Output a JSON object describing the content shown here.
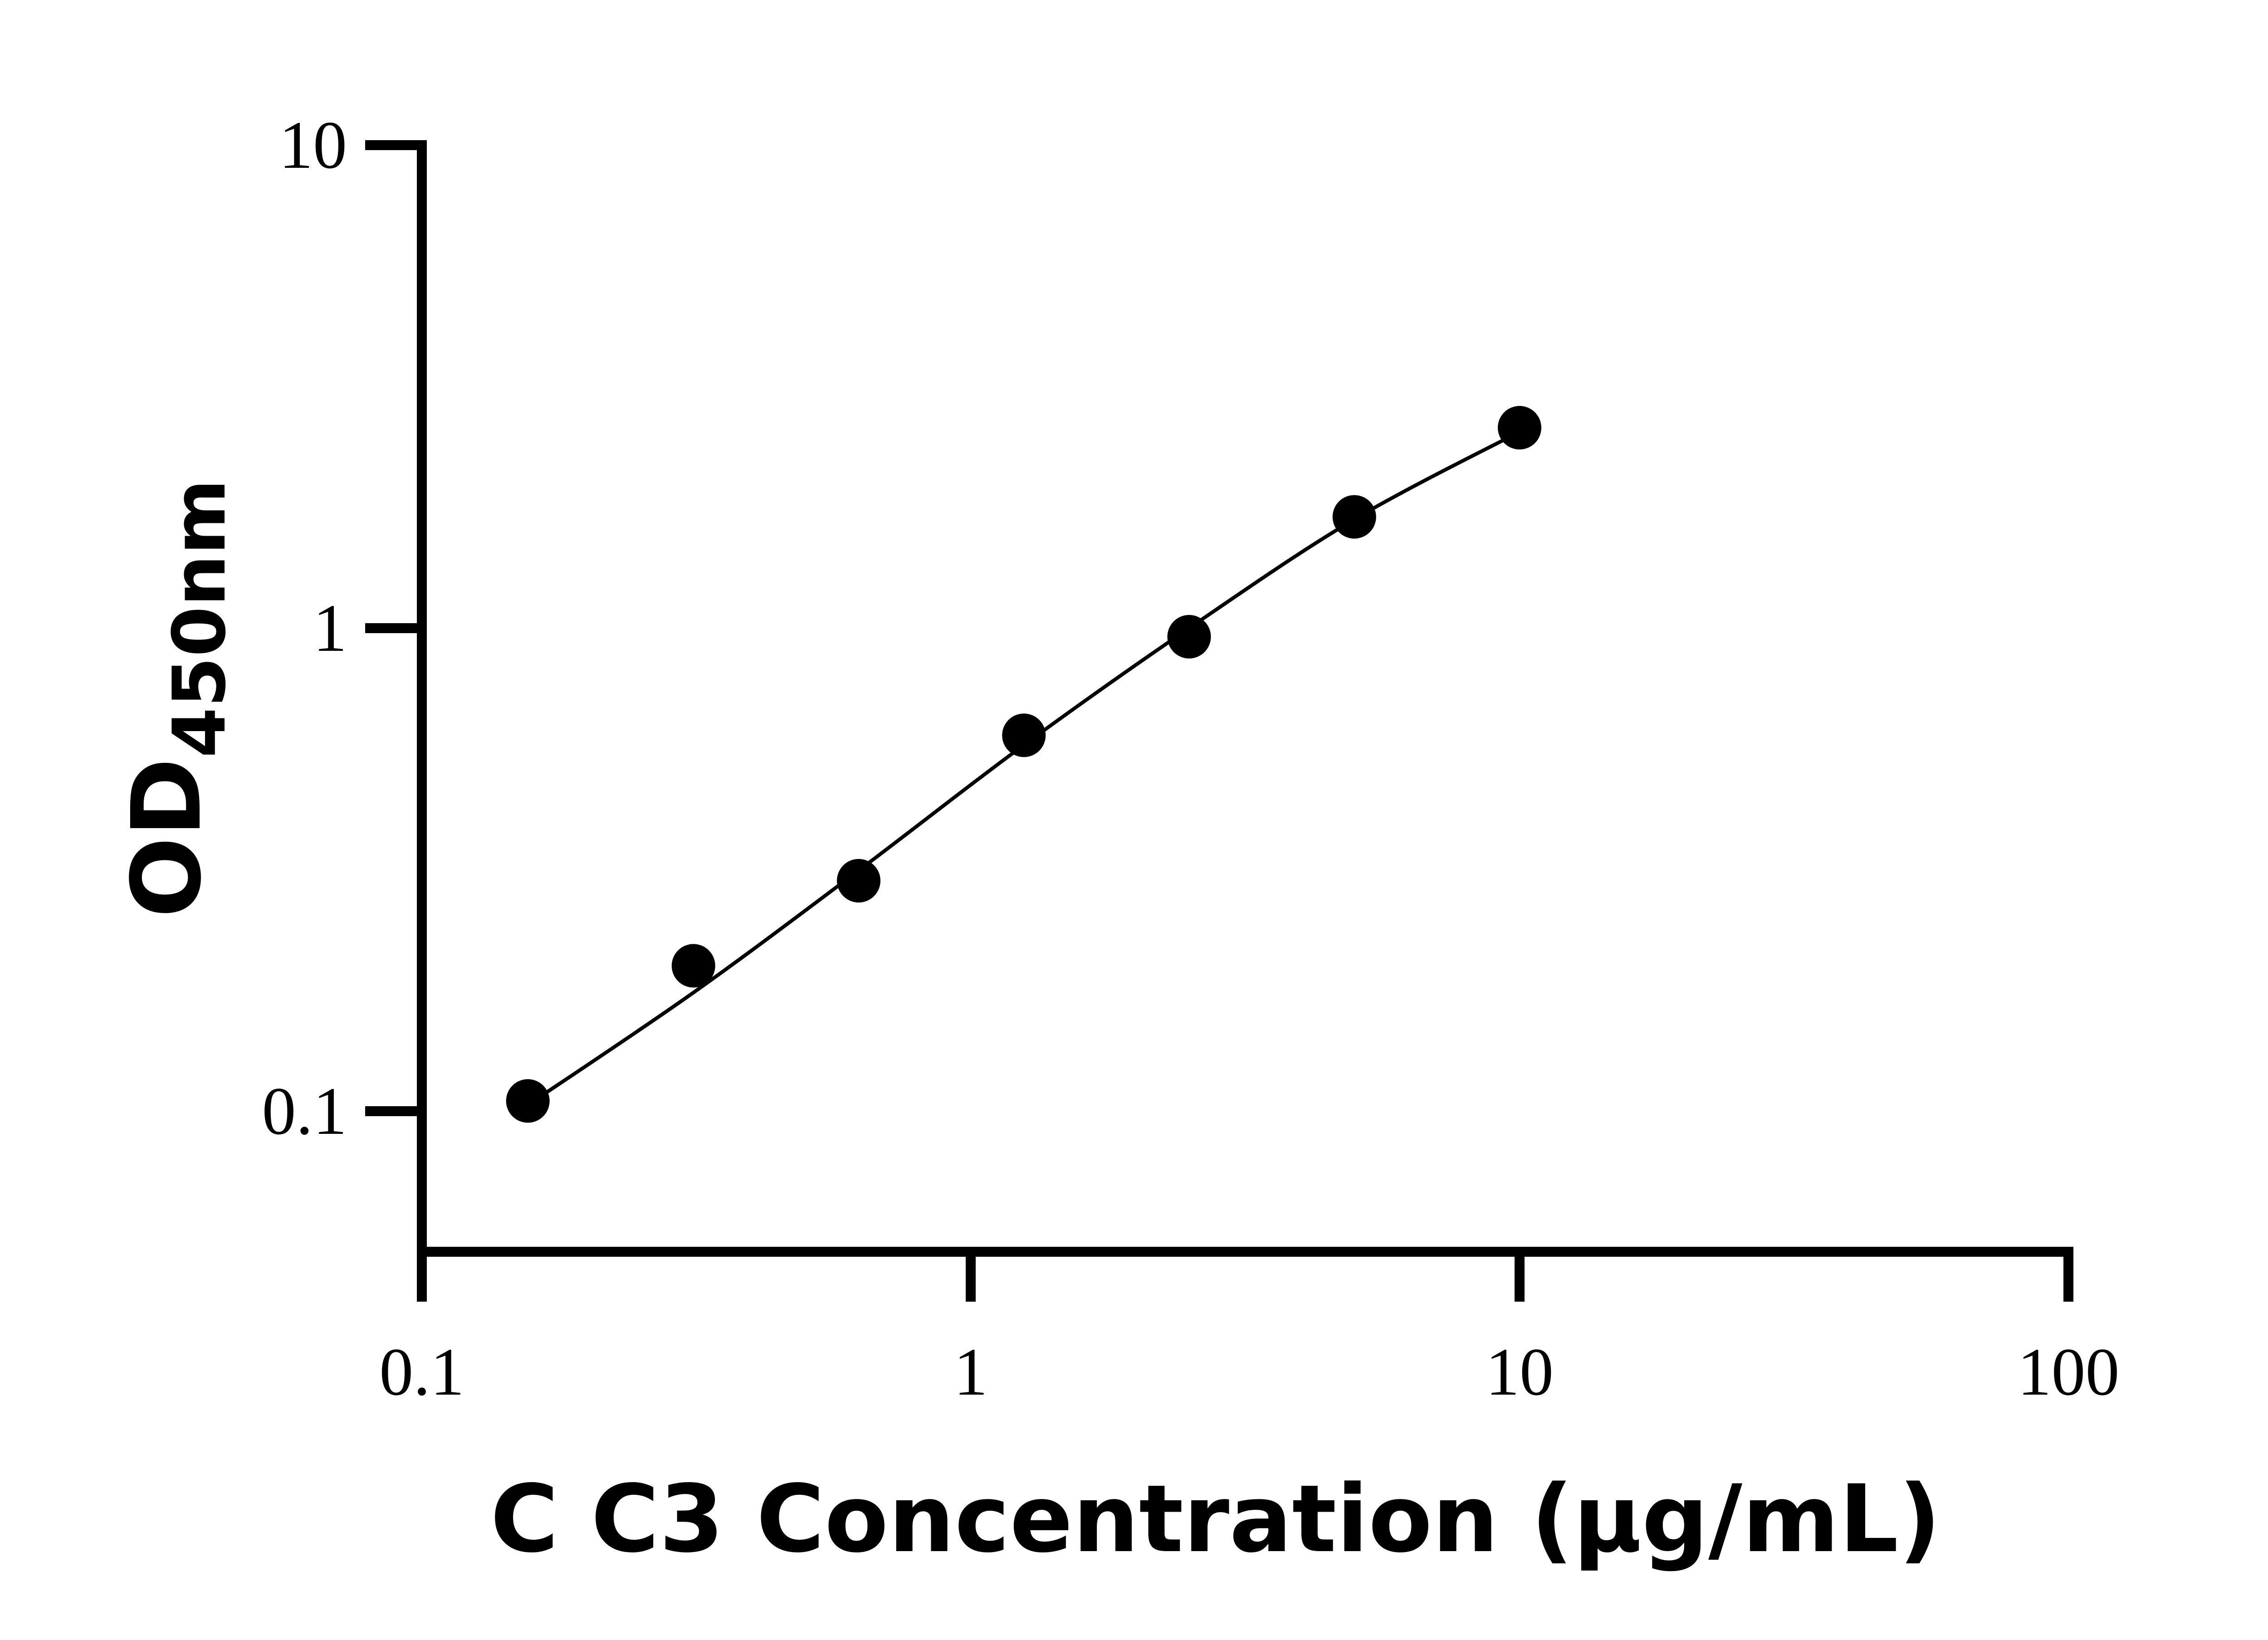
{
  "chart_data": {
    "type": "scatter",
    "title": "",
    "xlabel": "C C3 Concentration (μg/mL)",
    "ylabel": {
      "main": "OD",
      "subscript": "450nm"
    },
    "x_scale": "log",
    "y_scale": "log",
    "xlim": [
      0.1,
      100
    ],
    "ylim": [
      0.05,
      10
    ],
    "x_ticks": [
      {
        "value": 0.1,
        "label": "0.1"
      },
      {
        "value": 1,
        "label": "1"
      },
      {
        "value": 10,
        "label": "10"
      },
      {
        "value": 100,
        "label": "100"
      }
    ],
    "y_ticks": [
      {
        "value": 0.1,
        "label": "0.1"
      },
      {
        "value": 1,
        "label": "1"
      },
      {
        "value": 10,
        "label": "10"
      }
    ],
    "grid": false,
    "legend": "none",
    "series": [
      {
        "points": [
          {
            "x": 0.156,
            "y": 0.105
          },
          {
            "x": 0.3125,
            "y": 0.2
          },
          {
            "x": 0.625,
            "y": 0.3
          },
          {
            "x": 1.25,
            "y": 0.6
          },
          {
            "x": 2.5,
            "y": 0.96
          },
          {
            "x": 5,
            "y": 1.7
          },
          {
            "x": 10,
            "y": 2.6
          }
        ],
        "fit_curve": [
          {
            "x": 0.156,
            "y": 0.103
          },
          {
            "x": 0.3125,
            "y": 0.176
          },
          {
            "x": 0.625,
            "y": 0.315
          },
          {
            "x": 1.25,
            "y": 0.573
          },
          {
            "x": 2.5,
            "y": 1.0
          },
          {
            "x": 5,
            "y": 1.68
          },
          {
            "x": 10,
            "y": 2.55
          }
        ],
        "color": "#000000"
      }
    ]
  }
}
